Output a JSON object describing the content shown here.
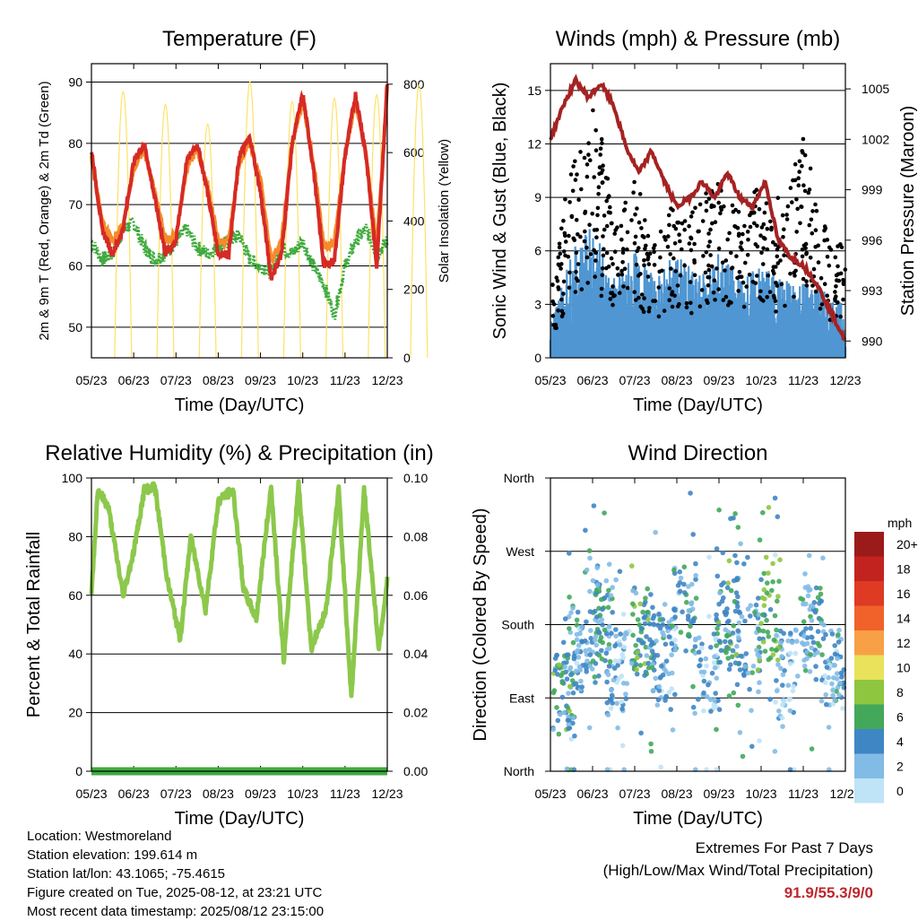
{
  "chart_data": [
    {
      "type": "line",
      "title": "Temperature (F)",
      "xlabel": "Time (Day/UTC)",
      "ylabel": "2m & 9m T (Red, Orange) & 2m Td (Green)",
      "y2label": "Solar Insolation (Yellow)",
      "x_ticks": [
        "05/23",
        "06/23",
        "07/23",
        "08/23",
        "09/23",
        "10/23",
        "11/23",
        "12/23"
      ],
      "y_ticks": [
        "50",
        "60",
        "70",
        "80",
        "90"
      ],
      "y2_ticks": [
        "0",
        "200",
        "400",
        "600",
        "800"
      ],
      "ylim": [
        45,
        93
      ],
      "y2lim": [
        0,
        860
      ],
      "grid": true,
      "series": [
        {
          "name": "2m T",
          "color": "#d62a25",
          "x": [
            0,
            0.25,
            0.5,
            0.75,
            1,
            1.25,
            1.5,
            1.75,
            2,
            2.25,
            2.5,
            2.75,
            3,
            3.25,
            3.5,
            3.75,
            4,
            4.25,
            4.5,
            4.75,
            5,
            5.25,
            5.5,
            5.75,
            6,
            6.25,
            6.5,
            6.75,
            7
          ],
          "values": [
            79,
            66,
            62,
            66,
            77,
            80,
            71,
            62,
            64,
            77,
            80,
            72,
            62,
            62,
            78,
            81,
            72,
            58,
            62,
            80,
            88,
            76,
            60,
            61,
            78,
            88,
            78,
            60,
            90
          ]
        },
        {
          "name": "9m T",
          "color": "#f58a2b",
          "x": [
            0,
            0.25,
            0.5,
            0.75,
            1,
            1.25,
            1.5,
            1.75,
            2,
            2.25,
            2.5,
            2.75,
            3,
            3.25,
            3.5,
            3.75,
            4,
            4.25,
            4.5,
            4.75,
            5,
            5.25,
            5.5,
            5.75,
            6,
            6.25,
            6.5,
            6.75,
            7
          ],
          "values": [
            78,
            67,
            64,
            67,
            76,
            79,
            72,
            64,
            65,
            76,
            79,
            73,
            64,
            64,
            77,
            80,
            74,
            61,
            64,
            80,
            87,
            77,
            63,
            64,
            78,
            87,
            78,
            63,
            89
          ]
        },
        {
          "name": "2m Td",
          "color": "#3eaa3d",
          "x": [
            0,
            0.25,
            0.5,
            0.75,
            1,
            1.25,
            1.5,
            1.75,
            2,
            2.25,
            2.5,
            2.75,
            3,
            3.25,
            3.5,
            3.75,
            4,
            4.25,
            4.5,
            4.75,
            5,
            5.25,
            5.5,
            5.75,
            6,
            6.25,
            6.5,
            6.75,
            7
          ],
          "values": [
            64,
            61,
            62,
            66,
            67,
            63,
            61,
            62,
            64,
            66,
            63,
            62,
            63,
            64,
            65,
            61,
            60,
            59,
            63,
            62,
            64,
            60,
            57,
            52,
            60,
            64,
            66,
            62,
            64
          ]
        },
        {
          "name": "Solar Insolation",
          "color": "#fde266",
          "axis": "y2",
          "daily_peaks": [
            820,
            780,
            720,
            850,
            790,
            800,
            810,
            840
          ]
        }
      ]
    },
    {
      "type": "line",
      "title": "Winds (mph) & Pressure (mb)",
      "xlabel": "Time (Day/UTC)",
      "ylabel": "Sonic Wind & Gust (Blue, Black)",
      "y2label": "Station Pressure (Maroon)",
      "x_ticks": [
        "05/23",
        "06/23",
        "07/23",
        "08/23",
        "09/23",
        "10/23",
        "11/23",
        "12/23"
      ],
      "y_ticks": [
        "0",
        "3",
        "6",
        "9",
        "12",
        "15"
      ],
      "y2_ticks": [
        "990",
        "993",
        "996",
        "999",
        "1002",
        "1005"
      ],
      "ylim": [
        0,
        16.5
      ],
      "y2lim": [
        989,
        1006.5
      ],
      "grid": true,
      "series": [
        {
          "name": "Sonic Wind",
          "color": "#4f96d2",
          "x": [
            0,
            0.5,
            1,
            1.5,
            2,
            2.5,
            3,
            3.5,
            4,
            4.5,
            5,
            5.5,
            6,
            6.5,
            7
          ],
          "values": [
            1.5,
            4,
            5,
            3,
            4,
            3,
            4,
            3,
            4,
            3,
            3.5,
            3,
            3,
            2.5,
            2
          ]
        },
        {
          "name": "Gust",
          "color": "#000000",
          "x": [
            0,
            0.5,
            1,
            1.5,
            2,
            2.5,
            3,
            3.5,
            4,
            4.5,
            5,
            5.5,
            6,
            6.5,
            7
          ],
          "values": [
            3,
            9,
            12,
            7,
            8,
            6,
            7,
            7,
            8,
            7,
            8,
            7,
            10,
            6,
            5
          ]
        },
        {
          "name": "Station Pressure",
          "color": "#a52222",
          "axis": "y2",
          "x": [
            0,
            0.3,
            0.6,
            0.9,
            1.2,
            1.5,
            1.8,
            2.1,
            2.4,
            2.7,
            3.0,
            3.3,
            3.6,
            3.9,
            4.2,
            4.5,
            4.8,
            5.1,
            5.4,
            5.7,
            6.0,
            6.3,
            6.6,
            7.0
          ],
          "values": [
            1002,
            1004,
            1005.5,
            1004.5,
            1005.3,
            1004,
            1001.5,
            1000,
            1001.3,
            999.5,
            998,
            998.5,
            999.5,
            998.5,
            1000,
            998.5,
            998,
            999.5,
            996,
            995,
            994.5,
            993.5,
            992,
            990
          ]
        }
      ]
    },
    {
      "type": "line",
      "title": "Relative Humidity (%) & Precipitation (in)",
      "xlabel": "Time (Day/UTC)",
      "ylabel": "Percent & Total Rainfall",
      "x_ticks": [
        "05/23",
        "06/23",
        "07/23",
        "08/23",
        "09/23",
        "10/23",
        "11/23",
        "12/23"
      ],
      "y_ticks": [
        "0",
        "20",
        "40",
        "60",
        "80",
        "100"
      ],
      "y2_ticks": [
        "0.00",
        "0.02",
        "0.04",
        "0.06",
        "0.08",
        "0.10"
      ],
      "ylim": [
        0,
        100
      ],
      "y2lim": [
        0,
        0.1
      ],
      "grid": true,
      "series": [
        {
          "name": "Relative Humidity",
          "color": "#8cc84b",
          "x": [
            0,
            0.15,
            0.4,
            0.75,
            1.0,
            1.25,
            1.5,
            1.8,
            2.1,
            2.35,
            2.7,
            3.0,
            3.35,
            3.6,
            3.9,
            4.25,
            4.55,
            4.9,
            5.2,
            5.55,
            5.85,
            6.15,
            6.45,
            6.8,
            7
          ],
          "values": [
            60,
            96,
            90,
            60,
            75,
            96,
            97,
            65,
            45,
            80,
            55,
            92,
            96,
            62,
            52,
            97,
            38,
            98,
            42,
            55,
            96,
            25,
            96,
            42,
            65
          ]
        },
        {
          "name": "Precipitation",
          "color": "#3eaa3d",
          "axis": "y2",
          "x": [
            0,
            7
          ],
          "values": [
            0,
            0
          ]
        }
      ]
    },
    {
      "type": "scatter",
      "title": "Wind Direction",
      "xlabel": "Time (Day/UTC)",
      "ylabel": "Direction (Colored By Speed)",
      "x_ticks": [
        "05/23",
        "06/23",
        "07/23",
        "08/23",
        "09/23",
        "10/23",
        "11/23",
        "12/23"
      ],
      "y_ticks": [
        "North",
        "East",
        "South",
        "West",
        "North"
      ],
      "y_tick_degrees": [
        0,
        90,
        180,
        270,
        360
      ],
      "grid": true,
      "clusters": [
        {
          "day": 0.3,
          "dir": 95,
          "speed": 5
        },
        {
          "day": 0.6,
          "dir": 150,
          "speed": 3
        },
        {
          "day": 1.2,
          "dir": 180,
          "speed": 4
        },
        {
          "day": 1.6,
          "dir": 120,
          "speed": 2
        },
        {
          "day": 2.2,
          "dir": 170,
          "speed": 5
        },
        {
          "day": 2.7,
          "dir": 140,
          "speed": 3
        },
        {
          "day": 3.2,
          "dir": 200,
          "speed": 4
        },
        {
          "day": 3.7,
          "dir": 110,
          "speed": 2
        },
        {
          "day": 4.2,
          "dir": 185,
          "speed": 5
        },
        {
          "day": 4.7,
          "dir": 150,
          "speed": 3
        },
        {
          "day": 5.2,
          "dir": 190,
          "speed": 6
        },
        {
          "day": 5.6,
          "dir": 120,
          "speed": 2
        },
        {
          "day": 6.2,
          "dir": 175,
          "speed": 4
        },
        {
          "day": 6.7,
          "dir": 130,
          "speed": 3
        }
      ],
      "colorbar": {
        "unit": "mph",
        "labels": [
          "20+",
          "18",
          "16",
          "14",
          "12",
          "10",
          "8",
          "6",
          "4",
          "2",
          "0"
        ],
        "colors": [
          "#9b1a1a",
          "#c3231f",
          "#de3a24",
          "#f0622a",
          "#f8a045",
          "#e9e25a",
          "#8ec63f",
          "#43a85a",
          "#3f86c4",
          "#82bbe5",
          "#bfe3f7"
        ]
      }
    }
  ],
  "station": {
    "location": "Location: Westmoreland",
    "elevation": "Station elevation: 199.614 m",
    "latlon": "Station lat/lon: 43.1065; -75.4615",
    "created": "Figure created on Tue, 2025-08-12, at 23:21 UTC",
    "recent": "Most recent data timestamp: 2025/08/12 23:15:00"
  },
  "extremes": {
    "title": "Extremes For Past 7 Days",
    "subtitle": "(High/Low/Max Wind/Total Precipitation)",
    "value": "91.9/55.3/9/0"
  }
}
